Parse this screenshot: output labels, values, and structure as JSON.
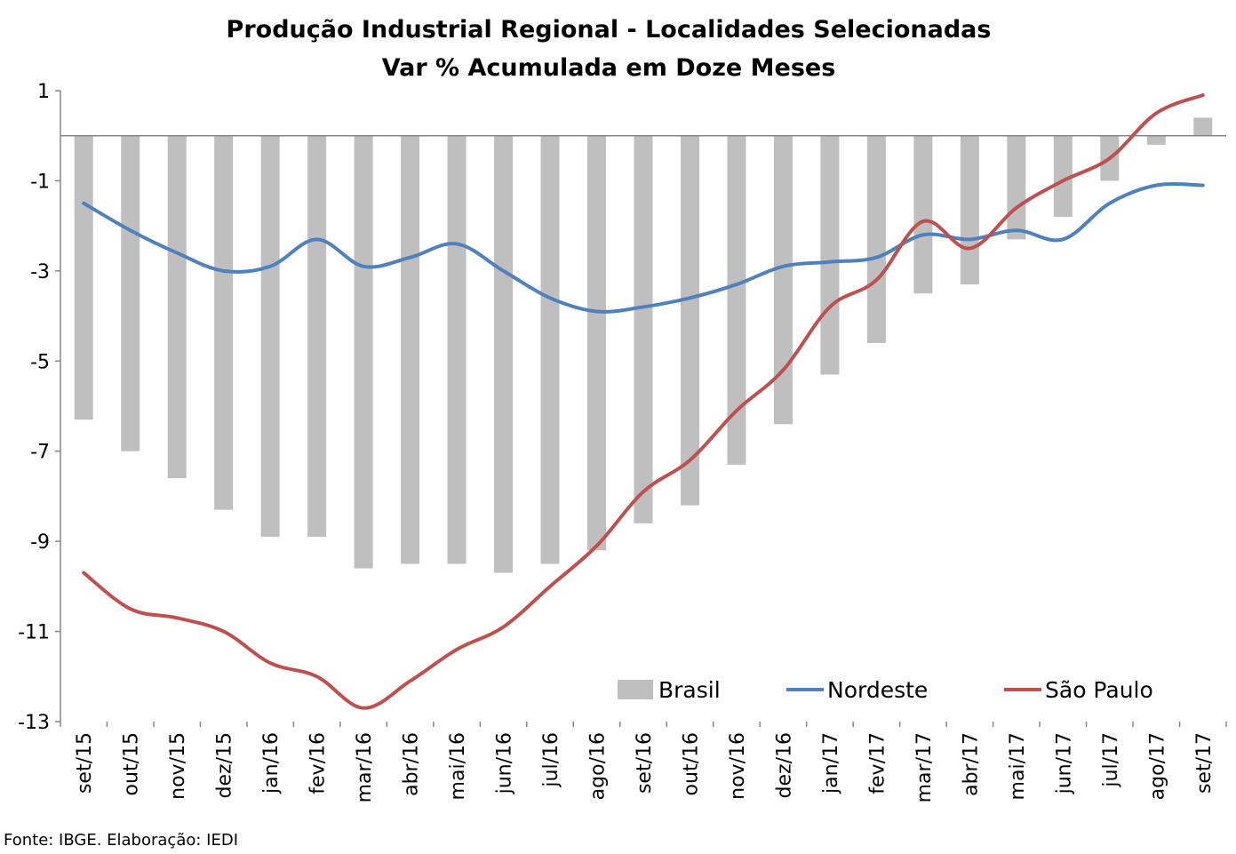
{
  "chart_data": {
    "type": "bar",
    "title": "Produção Industrial Regional - Localidades Selecionadas",
    "subtitle": "Var % Acumulada em Doze Meses",
    "categories": [
      "set/15",
      "out/15",
      "nov/15",
      "dez/15",
      "jan/16",
      "fev/16",
      "mar/16",
      "abr/16",
      "mai/16",
      "jun/16",
      "jul/16",
      "ago/16",
      "set/16",
      "out/16",
      "nov/16",
      "dez/16",
      "jan/17",
      "fev/17",
      "mar/17",
      "abr/17",
      "mai/17",
      "jun/17",
      "jul/17",
      "ago/17",
      "set/17"
    ],
    "ylim": [
      -13,
      1
    ],
    "yticks": [
      1,
      -1,
      -3,
      -5,
      -7,
      -9,
      -11,
      -13
    ],
    "ytick_labels": [
      "1",
      "-1",
      "-3",
      "-5",
      "-7",
      "-9",
      "-11",
      "-13"
    ],
    "grid": false,
    "legend_position": "bottom-right",
    "series": [
      {
        "name": "Brasil",
        "kind": "bar",
        "color": "#BFBFBF",
        "values": [
          -6.3,
          -7.0,
          -7.6,
          -8.3,
          -8.9,
          -8.9,
          -9.6,
          -9.5,
          -9.5,
          -9.7,
          -9.5,
          -9.2,
          -8.6,
          -8.2,
          -7.3,
          -6.4,
          -5.3,
          -4.6,
          -3.5,
          -3.3,
          -2.3,
          -1.8,
          -1.0,
          -0.2,
          0.4
        ]
      },
      {
        "name": "Nordeste",
        "kind": "line",
        "color": "#4F81BD",
        "values": [
          -1.5,
          -2.1,
          -2.6,
          -3.0,
          -2.9,
          -2.3,
          -2.9,
          -2.7,
          -2.4,
          -3.0,
          -3.6,
          -3.9,
          -3.8,
          -3.6,
          -3.3,
          -2.9,
          -2.8,
          -2.7,
          -2.2,
          -2.3,
          -2.1,
          -2.3,
          -1.5,
          -1.1,
          -1.1
        ]
      },
      {
        "name": "São Paulo",
        "kind": "line",
        "color": "#C0504D",
        "values": [
          -9.7,
          -10.5,
          -10.7,
          -11.0,
          -11.7,
          -12.0,
          -12.7,
          -12.1,
          -11.4,
          -10.9,
          -10.0,
          -9.1,
          -7.9,
          -7.2,
          -6.1,
          -5.2,
          -3.8,
          -3.2,
          -1.9,
          -2.5,
          -1.6,
          -1.0,
          -0.5,
          0.5,
          0.9
        ]
      }
    ]
  },
  "source": "Fonte: IBGE. Elaboração: IEDI"
}
